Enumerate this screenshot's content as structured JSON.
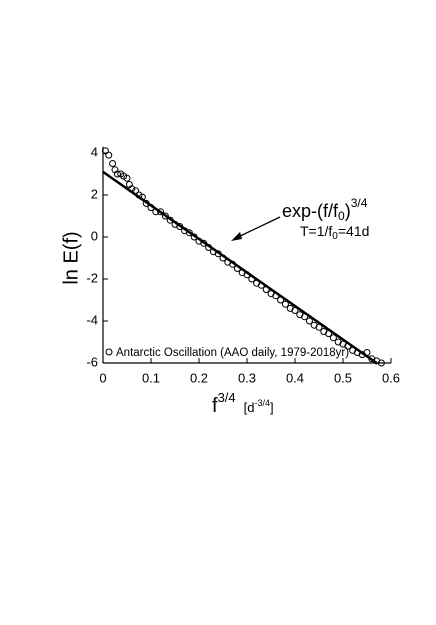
{
  "chart_data": {
    "type": "scatter",
    "y_label": "ln E(f)",
    "x_label": {
      "base": "f",
      "power": "3/4",
      "unit_open": "[d",
      "unit_power": "-3/4",
      "unit_close": "]"
    },
    "fit_label": [
      "exp-(f/f",
      "0",
      ")",
      "3/4"
    ],
    "period_label": [
      "T=1/f",
      "0",
      "=41d"
    ],
    "xlim": [
      0,
      0.6
    ],
    "xticks": [
      0,
      0.1,
      0.2,
      0.3,
      0.4,
      0.5,
      0.6
    ],
    "ylim": [
      -6,
      4.3
    ],
    "yticks": [
      -6,
      -4,
      -2,
      0,
      2,
      4
    ],
    "legend": "bottom-left",
    "series": [
      {
        "name": "Antarctic Oscillation (AAO daily, 1979-2018yr)",
        "style": "markers",
        "color": "#000000",
        "x": [
          0.005,
          0.012,
          0.02,
          0.025,
          0.03,
          0.037,
          0.043,
          0.05,
          0.055,
          0.06,
          0.068,
          0.075,
          0.082,
          0.09,
          0.1,
          0.11,
          0.12,
          0.13,
          0.14,
          0.15,
          0.16,
          0.17,
          0.18,
          0.19,
          0.2,
          0.21,
          0.22,
          0.23,
          0.24,
          0.25,
          0.26,
          0.27,
          0.28,
          0.29,
          0.3,
          0.31,
          0.32,
          0.33,
          0.34,
          0.35,
          0.36,
          0.37,
          0.38,
          0.39,
          0.4,
          0.41,
          0.42,
          0.43,
          0.44,
          0.45,
          0.46,
          0.47,
          0.48,
          0.49,
          0.5,
          0.51,
          0.52,
          0.53,
          0.54,
          0.55,
          0.56,
          0.57,
          0.58
        ],
        "values": [
          4.1,
          3.9,
          3.5,
          3.2,
          3.0,
          3.0,
          2.9,
          2.8,
          2.5,
          2.3,
          2.2,
          2.0,
          1.9,
          1.6,
          1.4,
          1.2,
          1.2,
          1.0,
          0.8,
          0.6,
          0.5,
          0.3,
          0.2,
          0.0,
          -0.2,
          -0.3,
          -0.5,
          -0.7,
          -0.8,
          -1.0,
          -1.2,
          -1.3,
          -1.5,
          -1.7,
          -1.8,
          -2.0,
          -2.2,
          -2.3,
          -2.5,
          -2.7,
          -2.8,
          -3.0,
          -3.2,
          -3.4,
          -3.5,
          -3.7,
          -3.8,
          -4.0,
          -4.2,
          -4.3,
          -4.5,
          -4.6,
          -4.8,
          -5.0,
          -5.1,
          -5.2,
          -5.4,
          -5.5,
          -5.6,
          -5.5,
          -5.8,
          -5.9,
          -6.0
        ]
      },
      {
        "style": "line",
        "color": "#000000",
        "x": [
          0,
          0.57
        ],
        "values": [
          3.1,
          -6.0
        ]
      }
    ]
  }
}
